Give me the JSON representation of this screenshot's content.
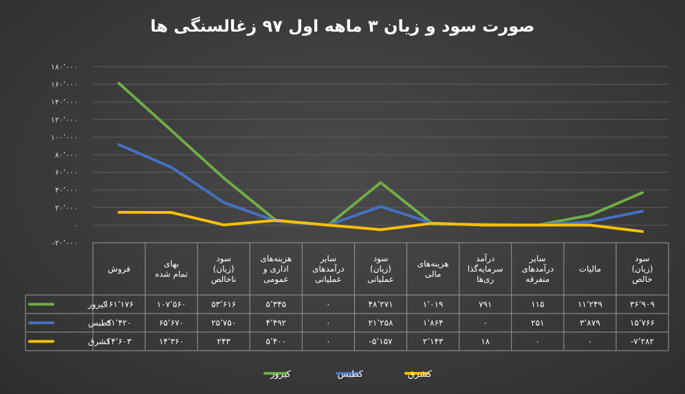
{
  "chart_data": {
    "type": "line",
    "title": "صورت سود و زیان ۳ ماهه اول ۹۷ زغالسنگی ها",
    "y_tick_labels": [
      "-۲۰٬۰۰۰",
      "۰",
      "۲۰٬۰۰۰",
      "۴۰٬۰۰۰",
      "۶۰٬۰۰۰",
      "۸۰٬۰۰۰",
      "۱۰۰٬۰۰۰",
      "۱۲۰٬۰۰۰",
      "۱۴۰٬۰۰۰",
      "۱۶۰٬۰۰۰",
      "۱۸۰٬۰۰۰"
    ],
    "ylim": [
      -20000,
      180000
    ],
    "grid": true,
    "legend_position": "bottom",
    "categories": [
      [
        "فروش"
      ],
      [
        "بهای",
        "تمام شده"
      ],
      [
        "سود",
        "(زیان)",
        "ناخالص"
      ],
      [
        "هزینه‌های",
        "اداری و",
        "عمومی"
      ],
      [
        "سایر",
        "درآمدهای",
        "عملیاتی"
      ],
      [
        "سود",
        "(زیان)",
        "عملیاتی"
      ],
      [
        "هزینه‌های",
        "مالی"
      ],
      [
        "درآمد",
        "سرمایه‌گذا",
        "ری‌ها"
      ],
      [
        "سایر",
        "درآمدهای",
        "متفرقه"
      ],
      [
        "مالیات"
      ],
      [
        "سود",
        "(زیان)",
        "خالص"
      ]
    ],
    "series": [
      {
        "name": "کیرور",
        "color": "#70ad47",
        "values": [
          161176,
          107560,
          53616,
          5345,
          0,
          48271,
          1019,
          791,
          115,
          11249,
          36909
        ],
        "labels": [
          "۱۶۱٬۱۷۶",
          "۱۰۷٬۵۶۰",
          "۵۳٬۶۱۶",
          "۵٬۳۴۵",
          "۰",
          "۴۸٬۲۷۱",
          "۱٬۰۱۹",
          "۷۹۱",
          "۱۱۵",
          "۱۱٬۲۴۹",
          "۳۶٬۹۰۹"
        ]
      },
      {
        "name": "کطبس",
        "color": "#4472c4",
        "values": [
          91420,
          65670,
          25750,
          4492,
          0,
          21258,
          1864,
          0,
          251,
          3879,
          15766
        ],
        "labels": [
          "۹۱٬۴۲۰",
          "۶۵٬۶۷۰",
          "۲۵٬۷۵۰",
          "۴٬۴۹۲",
          "۰",
          "۲۱٬۲۵۸",
          "۱٬۸۶۴",
          "۰",
          "۲۵۱",
          "۳٬۸۷۹",
          "۱۵٬۷۶۶"
        ]
      },
      {
        "name": "کشرق",
        "color": "#ffc000",
        "values": [
          14603,
          14360,
          243,
          5400,
          0,
          -5157,
          2143,
          18,
          0,
          0,
          -7282
        ],
        "labels": [
          "۱۴٬۶۰۳",
          "۱۴٬۳۶۰",
          "۲۴۳",
          "۵٬۴۰۰",
          "۰",
          "-۵٬۱۵۷",
          "۲٬۱۴۳",
          "۱۸",
          "۰",
          "۰",
          "-۷٬۲۸۲"
        ]
      }
    ]
  }
}
